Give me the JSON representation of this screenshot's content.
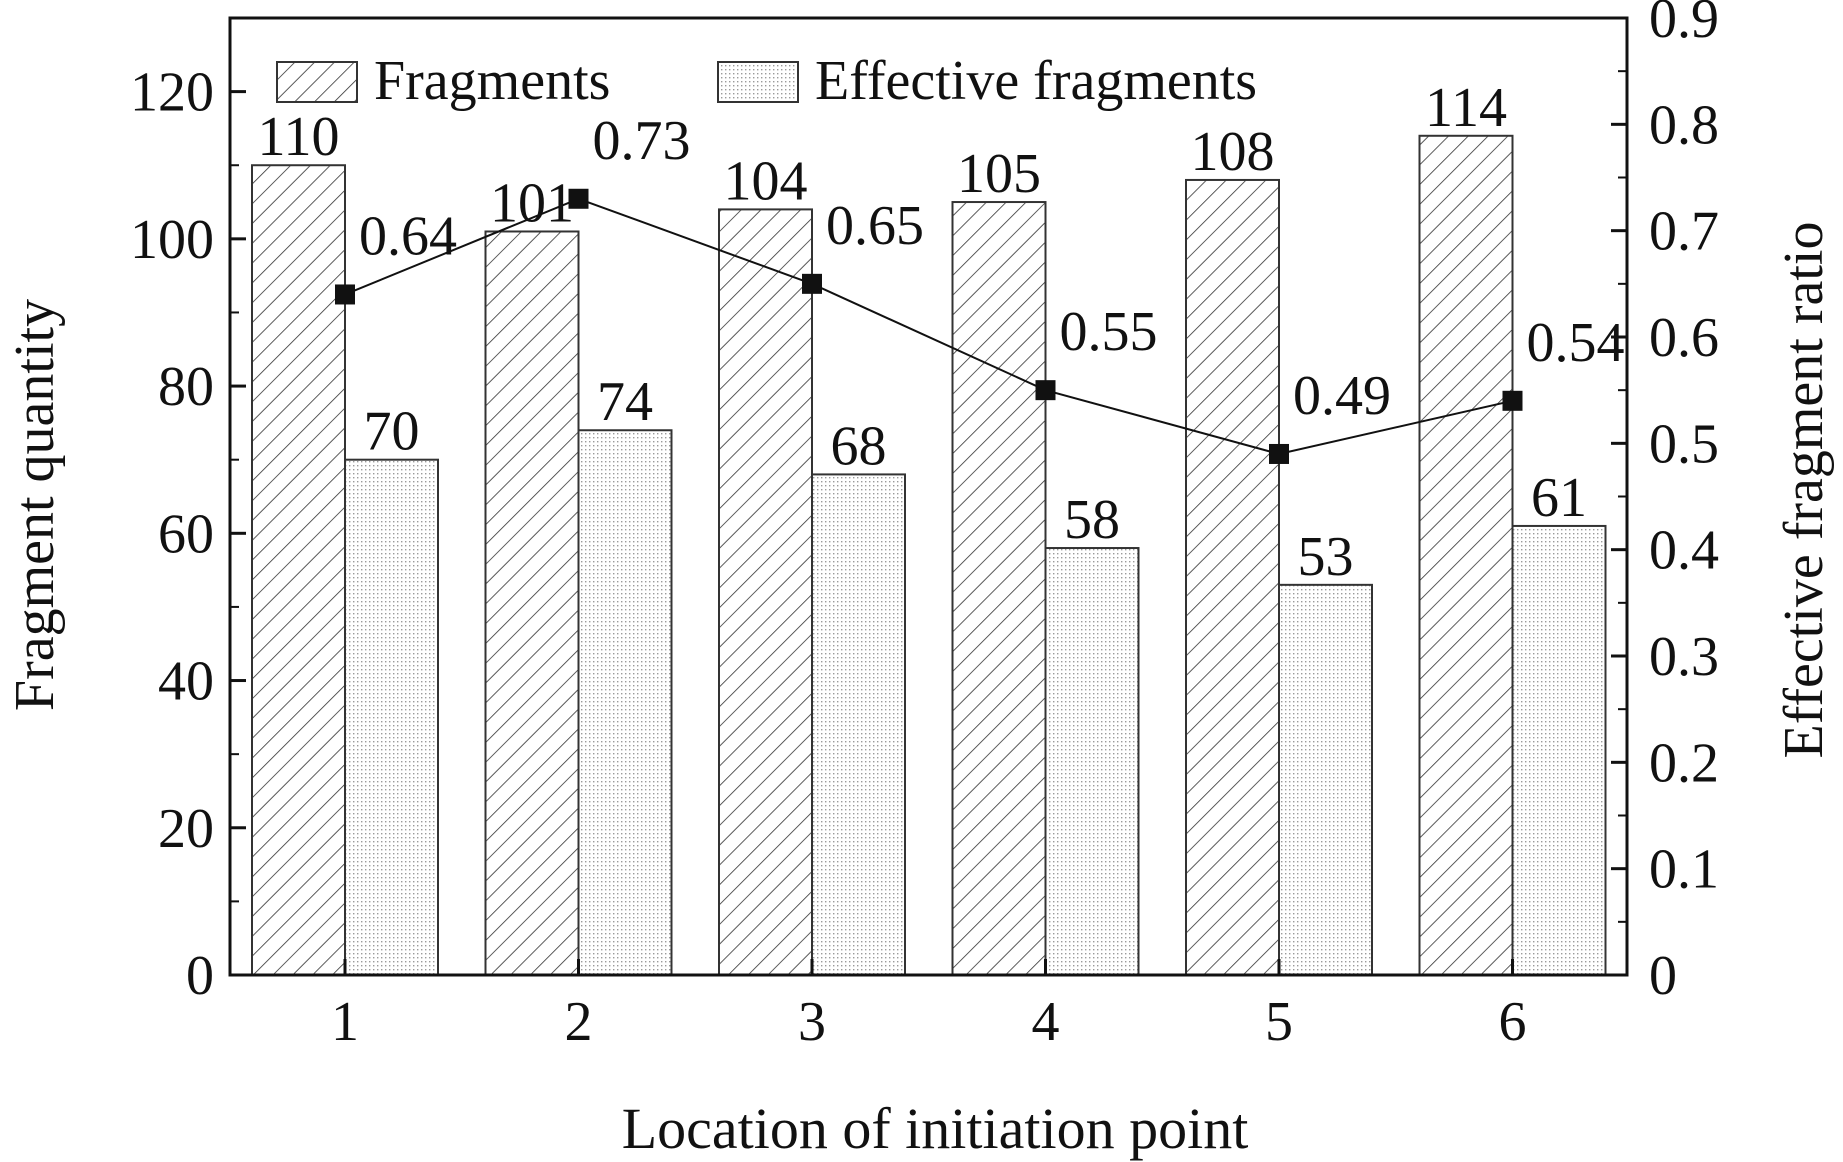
{
  "chart_data": {
    "type": "bar",
    "xlabel": "Location of initiation point",
    "ylabel_left": "Fragment quantity",
    "ylabel_right": "Effective fragment ratio",
    "categories": [
      "1",
      "2",
      "3",
      "4",
      "5",
      "6"
    ],
    "ylim_left": [
      0,
      130
    ],
    "yticks_left": [
      "0",
      "20",
      "40",
      "60",
      "80",
      "100",
      "120"
    ],
    "ylim_right": [
      0,
      0.9
    ],
    "yticks_right": [
      "0",
      "0.1",
      "0.2",
      "0.3",
      "0.4",
      "0.5",
      "0.6",
      "0.7",
      "0.8",
      "0.9"
    ],
    "series": [
      {
        "name": "Fragments",
        "kind": "bar",
        "axis": "left",
        "fill": "diagonal-hatch",
        "values": [
          110,
          101,
          104,
          105,
          108,
          114
        ],
        "labels": [
          "110",
          "101",
          "104",
          "105",
          "108",
          "114"
        ]
      },
      {
        "name": "Effective fragments",
        "kind": "bar",
        "axis": "left",
        "fill": "dotted",
        "values": [
          70,
          74,
          68,
          58,
          53,
          61
        ],
        "labels": [
          "70",
          "74",
          "68",
          "58",
          "53",
          "61"
        ]
      },
      {
        "kind": "line",
        "axis": "right",
        "marker": "square",
        "values": [
          0.64,
          0.73,
          0.65,
          0.55,
          0.49,
          0.54
        ],
        "labels": [
          "0.64",
          "0.73",
          "0.65",
          "0.55",
          "0.49",
          "0.54"
        ]
      }
    ],
    "legend": "top-left, inside plot",
    "grid": false,
    "colors": {
      "ink": "#111111",
      "bar_border": "#333333",
      "background": "#ffffff"
    }
  }
}
